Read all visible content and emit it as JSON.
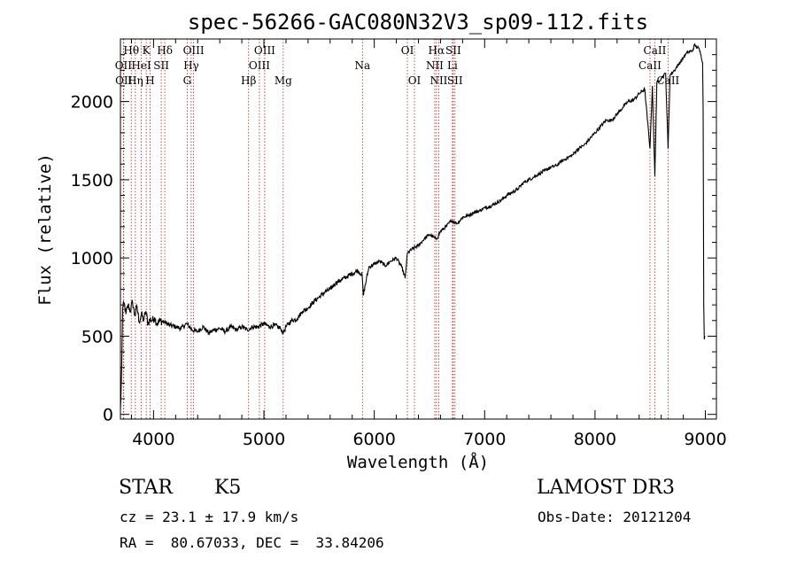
{
  "chart_data": {
    "type": "line",
    "title": "spec-56266-GAC080N32V3_sp09-112.fits",
    "xlabel": "Wavelength (Å)",
    "ylabel": "Flux (relative)",
    "xlim": [
      3700,
      9100
    ],
    "ylim": [
      -30,
      2400
    ],
    "x_ticks": [
      4000,
      5000,
      6000,
      7000,
      8000,
      9000
    ],
    "y_ticks": [
      0,
      500,
      1000,
      1500,
      2000
    ],
    "grid": false,
    "series": [
      {
        "name": "spectrum",
        "x": [
          3700,
          3705,
          3712,
          3720,
          3735,
          3750,
          3770,
          3790,
          3810,
          3830,
          3850,
          3870,
          3890,
          3910,
          3930,
          3950,
          3968,
          3990,
          4010,
          4030,
          4060,
          4100,
          4150,
          4200,
          4250,
          4300,
          4350,
          4400,
          4450,
          4500,
          4550,
          4600,
          4650,
          4700,
          4750,
          4800,
          4850,
          4900,
          4950,
          5000,
          5050,
          5100,
          5150,
          5175,
          5200,
          5250,
          5300,
          5350,
          5400,
          5450,
          5500,
          5550,
          5600,
          5650,
          5700,
          5750,
          5800,
          5850,
          5890,
          5900,
          5950,
          6000,
          6050,
          6100,
          6150,
          6200,
          6250,
          6280,
          6300,
          6350,
          6400,
          6450,
          6500,
          6563,
          6600,
          6650,
          6700,
          6750,
          6800,
          6850,
          6900,
          6950,
          7000,
          7050,
          7100,
          7150,
          7200,
          7250,
          7300,
          7350,
          7400,
          7450,
          7500,
          7550,
          7600,
          7650,
          7700,
          7750,
          7800,
          7850,
          7900,
          7950,
          8000,
          8050,
          8100,
          8150,
          8200,
          8250,
          8300,
          8350,
          8400,
          8450,
          8498,
          8520,
          8542,
          8560,
          8600,
          8640,
          8662,
          8680,
          8720,
          8760,
          8800,
          8830,
          8860,
          8880,
          8900,
          8940,
          8960,
          8975,
          8980,
          8985,
          8990,
          8995
        ],
        "y": [
          30,
          120,
          320,
          680,
          710,
          640,
          700,
          660,
          720,
          630,
          690,
          590,
          640,
          600,
          660,
          580,
          610,
          600,
          620,
          580,
          600,
          590,
          570,
          560,
          550,
          580,
          540,
          530,
          560,
          520,
          540,
          550,
          530,
          560,
          540,
          560,
          540,
          560,
          560,
          580,
          560,
          570,
          550,
          520,
          560,
          600,
          610,
          660,
          680,
          720,
          750,
          780,
          800,
          840,
          860,
          880,
          900,
          920,
          890,
          760,
          940,
          960,
          980,
          950,
          980,
          1000,
          940,
          870,
          1030,
          1060,
          1080,
          1120,
          1150,
          1120,
          1170,
          1200,
          1240,
          1220,
          1260,
          1270,
          1290,
          1300,
          1320,
          1330,
          1350,
          1370,
          1400,
          1420,
          1440,
          1480,
          1500,
          1520,
          1540,
          1560,
          1580,
          1590,
          1620,
          1640,
          1660,
          1700,
          1720,
          1760,
          1800,
          1840,
          1880,
          1880,
          1920,
          1960,
          2000,
          2010,
          2050,
          2080,
          1700,
          2100,
          1520,
          2120,
          2150,
          2180,
          1700,
          2170,
          2200,
          2240,
          2280,
          2310,
          2320,
          2320,
          2360,
          2340,
          2300,
          2250,
          1950,
          700,
          480,
          500
        ]
      }
    ],
    "spectral_lines": [
      {
        "label": "Hθ",
        "wavelength": 3798,
        "row": 1
      },
      {
        "label": "OII",
        "wavelength": 3727,
        "row": 2
      },
      {
        "label": "OII",
        "wavelength": 3730,
        "row": 3
      },
      {
        "label": "K",
        "wavelength": 3934,
        "row": 1
      },
      {
        "label": "HeI",
        "wavelength": 3889,
        "row": 2
      },
      {
        "label": "Hη",
        "wavelength": 3835,
        "row": 3
      },
      {
        "label": "Hδ",
        "wavelength": 4102,
        "row": 1
      },
      {
        "label": "SII",
        "wavelength": 4070,
        "row": 2
      },
      {
        "label": "H",
        "wavelength": 3969,
        "row": 3
      },
      {
        "label": "OIII",
        "wavelength": 4363,
        "row": 1
      },
      {
        "label": "Hγ",
        "wavelength": 4341,
        "row": 2
      },
      {
        "label": "G",
        "wavelength": 4305,
        "row": 3
      },
      {
        "label": "OIII",
        "wavelength": 5007,
        "row": 1
      },
      {
        "label": "OIII",
        "wavelength": 4959,
        "row": 2
      },
      {
        "label": "Hβ",
        "wavelength": 4861,
        "row": 3
      },
      {
        "label": "Mg",
        "wavelength": 5175,
        "row": 3
      },
      {
        "label": "Na",
        "wavelength": 5893,
        "row": 2
      },
      {
        "label": "OI",
        "wavelength": 6300,
        "row": 1
      },
      {
        "label": "OI",
        "wavelength": 6364,
        "row": 3
      },
      {
        "label": "Hα",
        "wavelength": 6563,
        "row": 1
      },
      {
        "label": "SII",
        "wavelength": 6716,
        "row": 1
      },
      {
        "label": "NII",
        "wavelength": 6548,
        "row": 2
      },
      {
        "label": "Li",
        "wavelength": 6708,
        "row": 2
      },
      {
        "label": "NII",
        "wavelength": 6584,
        "row": 3
      },
      {
        "label": "SII",
        "wavelength": 6731,
        "row": 3
      },
      {
        "label": "CaII",
        "wavelength": 8542,
        "row": 1
      },
      {
        "label": "CaII",
        "wavelength": 8498,
        "row": 2
      },
      {
        "label": "CaII",
        "wavelength": 8662,
        "row": 3
      }
    ]
  },
  "info": {
    "object_class": "STAR",
    "subclass": "K5",
    "survey": "LAMOST DR3",
    "cz": "cz = 23.1 ± 17.9 km/s",
    "obs_date": "Obs-Date: 20121204",
    "coords": "RA =  80.67033, DEC =  33.84206"
  },
  "colors": {
    "axis": "#000000",
    "spectrum": "#000000",
    "line_marker": "#b22222"
  }
}
